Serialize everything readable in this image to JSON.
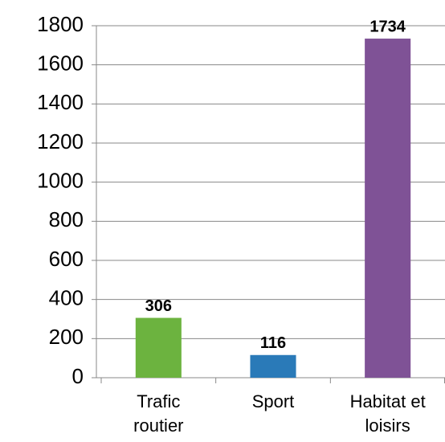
{
  "chart_data": {
    "type": "bar",
    "categories": [
      "Trafic routier",
      "Sport",
      "Habitat et loisirs"
    ],
    "values": [
      306,
      116,
      1734
    ],
    "colors": [
      "#6cb33f",
      "#2a7ab8",
      "#7f5296"
    ],
    "ylim": [
      0,
      1800
    ],
    "yticks": [
      0,
      200,
      400,
      600,
      800,
      1000,
      1200,
      1400,
      1600,
      1800
    ],
    "grid": true
  }
}
